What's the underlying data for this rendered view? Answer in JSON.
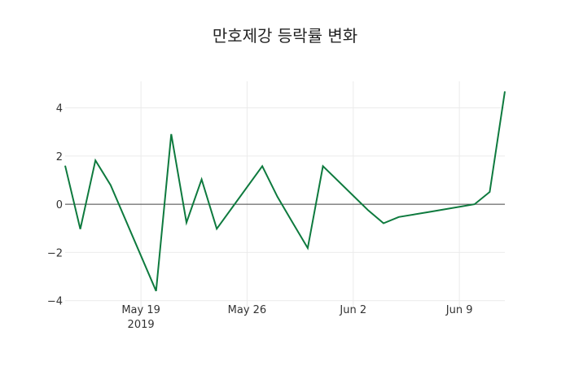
{
  "chart_data": {
    "type": "line",
    "title": "만호제강 등락률 변화",
    "xlabel": "",
    "ylabel": "",
    "x": [
      "2019-05-14",
      "2019-05-15",
      "2019-05-16",
      "2019-05-17",
      "2019-05-20",
      "2019-05-21",
      "2019-05-22",
      "2019-05-23",
      "2019-05-24",
      "2019-05-27",
      "2019-05-28",
      "2019-05-29",
      "2019-05-30",
      "2019-05-31",
      "2019-06-03",
      "2019-06-04",
      "2019-06-05",
      "2019-06-07",
      "2019-06-10",
      "2019-06-11",
      "2019-06-12"
    ],
    "series": [
      {
        "name": "등락률",
        "color": "#0e7a3e",
        "values": [
          1.6,
          -1.03,
          1.82,
          0.79,
          -3.6,
          2.91,
          -0.76,
          1.03,
          -1.02,
          1.58,
          0.31,
          -0.76,
          -1.82,
          1.58,
          -0.26,
          -0.79,
          -0.53,
          -0.32,
          0.0,
          0.51,
          4.68
        ]
      }
    ],
    "xlim": [
      "2019-05-14",
      "2019-06-12"
    ],
    "ylim": [
      -4.35,
      5.1
    ],
    "x_ticks": [
      {
        "date": "2019-05-19",
        "label": "May 19",
        "sublabel": "2019"
      },
      {
        "date": "2019-05-26",
        "label": "May 26",
        "sublabel": ""
      },
      {
        "date": "2019-06-02",
        "label": "Jun 2",
        "sublabel": ""
      },
      {
        "date": "2019-06-09",
        "label": "Jun 9",
        "sublabel": ""
      }
    ],
    "y_ticks": [
      {
        "value": 4,
        "label": "4"
      },
      {
        "value": 2,
        "label": "2"
      },
      {
        "value": 0,
        "label": "0"
      },
      {
        "value": -2,
        "label": "−2"
      },
      {
        "value": -4,
        "label": "−4"
      }
    ],
    "grid": true,
    "zeroline": true,
    "legend": false
  }
}
